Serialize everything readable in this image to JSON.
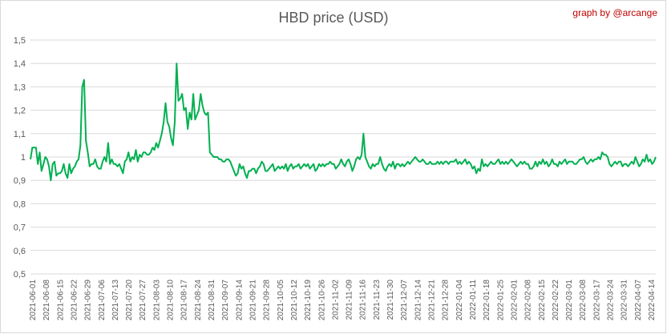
{
  "chart_data": {
    "type": "line",
    "title": "HBD price (USD)",
    "credit": "graph by @arcange",
    "xlabel": "",
    "ylabel": "",
    "ylim": [
      0.5,
      1.5
    ],
    "y_ticks": [
      "0,5",
      "0,6",
      "0,7",
      "0,8",
      "0,9",
      "1",
      "1,1",
      "1,2",
      "1,3",
      "1,4",
      "1,5"
    ],
    "x_ticks": [
      "2021-06-01",
      "2021-06-08",
      "2021-06-15",
      "2021-06-22",
      "2021-06-29",
      "2021-07-06",
      "2021-07-13",
      "2021-07-20",
      "2021-07-27",
      "2021-08-03",
      "2021-08-10",
      "2021-08-17",
      "2021-08-24",
      "2021-08-31",
      "2021-09-07",
      "2021-09-14",
      "2021-09-21",
      "2021-09-28",
      "2021-10-05",
      "2021-10-12",
      "2021-10-19",
      "2021-10-26",
      "2021-11-02",
      "2021-11-09",
      "2021-11-16",
      "2021-11-23",
      "2021-11-30",
      "2021-12-07",
      "2021-12-14",
      "2021-12-21",
      "2021-12-28",
      "2022-01-04",
      "2022-01-11",
      "2022-01-18",
      "2022-01-25",
      "2022-02-01",
      "2022-02-08",
      "2022-02-15",
      "2022-02-22",
      "2022-03-01",
      "2022-03-08",
      "2022-03-17",
      "2022-03-24",
      "2022-03-31",
      "2022-04-07",
      "2022-04-14"
    ],
    "grid": "horizontal",
    "line_color": "#00b050",
    "gridline_color": "#d9d9d9",
    "series": [
      {
        "values": [
          0.99,
          1.04,
          1.04,
          1.04,
          0.97,
          1.02,
          0.94,
          0.97,
          1.0,
          0.99,
          0.96,
          0.9,
          0.97,
          0.98,
          0.92,
          0.93,
          0.93,
          0.94,
          0.97,
          0.93,
          0.91,
          0.97,
          0.93,
          0.95,
          0.96,
          0.98,
          0.99,
          1.05,
          1.3,
          1.33,
          1.07,
          1.02,
          0.96,
          0.97,
          0.97,
          0.99,
          0.96,
          0.95,
          0.95,
          0.98,
          1.0,
          0.98,
          1.06,
          0.97,
          0.99,
          0.97,
          0.97,
          0.96,
          0.97,
          0.95,
          0.93,
          0.98,
          0.99,
          1.02,
          0.98,
          1.0,
          0.99,
          1.03,
          0.98,
          1.01,
          1.0,
          1.02,
          1.02,
          1.01,
          1.01,
          1.02,
          1.04,
          1.03,
          1.06,
          1.04,
          1.07,
          1.1,
          1.15,
          1.23,
          1.15,
          1.13,
          1.08,
          1.05,
          1.15,
          1.4,
          1.24,
          1.25,
          1.27,
          1.2,
          1.21,
          1.12,
          1.19,
          1.16,
          1.27,
          1.16,
          1.18,
          1.2,
          1.27,
          1.22,
          1.19,
          1.18,
          1.19,
          1.02,
          1.01,
          1.0,
          1.0,
          1.0,
          0.99,
          0.99,
          0.98,
          0.98,
          0.99,
          0.99,
          0.98,
          0.96,
          0.94,
          0.92,
          0.93,
          0.97,
          0.95,
          0.96,
          0.93,
          0.91,
          0.94,
          0.94,
          0.95,
          0.95,
          0.93,
          0.95,
          0.96,
          0.98,
          0.97,
          0.94,
          0.94,
          0.95,
          0.96,
          0.97,
          0.94,
          0.95,
          0.96,
          0.95,
          0.96,
          0.95,
          0.97,
          0.94,
          0.96,
          0.97,
          0.95,
          0.96,
          0.96,
          0.97,
          0.95,
          0.96,
          0.97,
          0.96,
          0.97,
          0.95,
          0.96,
          0.97,
          0.94,
          0.95,
          0.97,
          0.96,
          0.97,
          0.96,
          0.97,
          0.97,
          0.98,
          0.97,
          0.97,
          0.95,
          0.96,
          0.97,
          0.99,
          0.97,
          0.96,
          0.98,
          0.99,
          0.97,
          0.94,
          0.96,
          0.99,
          1.0,
          0.99,
          1.01,
          1.1,
          1.0,
          0.98,
          0.96,
          0.95,
          0.97,
          0.96,
          0.97,
          0.97,
          1.0,
          0.97,
          0.95,
          0.94,
          0.96,
          0.97,
          0.96,
          0.98,
          0.95,
          0.97,
          0.97,
          0.96,
          0.97,
          0.96,
          0.97,
          0.98,
          0.97,
          0.98,
          0.99,
          1.0,
          0.99,
          0.98,
          0.98,
          0.99,
          0.98,
          0.97,
          0.97,
          0.98,
          0.97,
          0.97,
          0.97,
          0.98,
          0.97,
          0.98,
          0.97,
          0.98,
          0.98,
          0.97,
          0.98,
          0.98,
          0.98,
          0.99,
          0.97,
          0.98,
          0.97,
          0.98,
          0.99,
          0.97,
          0.98,
          0.97,
          0.95,
          0.96,
          0.93,
          0.95,
          0.94,
          0.99,
          0.96,
          0.97,
          0.96,
          0.97,
          0.98,
          0.97,
          0.97,
          0.98,
          0.99,
          0.97,
          0.98,
          0.97,
          0.98,
          0.97,
          0.98,
          0.99,
          0.98,
          0.97,
          0.96,
          0.97,
          0.98,
          0.97,
          0.98,
          0.97,
          0.97,
          0.95,
          0.95,
          0.96,
          0.98,
          0.96,
          0.98,
          0.97,
          0.99,
          0.97,
          0.98,
          0.96,
          0.97,
          0.99,
          0.97,
          0.97,
          0.96,
          0.98,
          0.97,
          0.98,
          0.99,
          0.97,
          0.98,
          0.98,
          0.98,
          0.97,
          0.97,
          0.98,
          0.99,
          0.99,
          1.0,
          0.98,
          0.97,
          0.98,
          0.99,
          0.98,
          0.99,
          0.99,
          1.0,
          0.99,
          1.02,
          1.01,
          1.01,
          1.0,
          0.97,
          0.96,
          0.97,
          0.98,
          0.97,
          0.98,
          0.98,
          0.96,
          0.97,
          0.97,
          0.96,
          0.97,
          0.98,
          0.97,
          1.0,
          0.98,
          0.96,
          0.97,
          0.99,
          0.98,
          1.01,
          0.98,
          0.99,
          0.97,
          0.98,
          1.0
        ]
      }
    ]
  }
}
